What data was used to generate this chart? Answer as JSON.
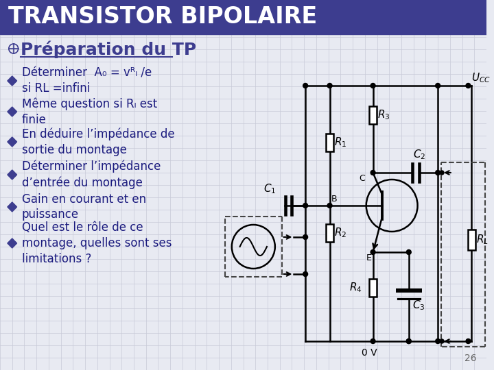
{
  "title": "TRANSISTOR BIPOLAIRE",
  "subtitle": "Préparation du TP",
  "title_bg_color": "#3d3d8f",
  "title_text_color": "#ffffff",
  "subtitle_text_color": "#3d3d8f",
  "bg_color": "#e8eaf2",
  "bullet_color": "#3d3d8f",
  "text_color": "#1a1a7e",
  "bullet_points": [
    "Déterminer  A₀ = vᴿₗ /e\nsi RL =infini",
    "Même question si Rₗ est\nfinie",
    "En déduire l’impédance de\nsortie du montage",
    "Déterminer l’impédance\nd’entrée du montage",
    "Gain en courant et en\npuissance",
    "Quel est le rôle de ce\nmontage, quelles sont ses\nlimitations ?"
  ],
  "page_number": "26",
  "grid_color": "#c8cad8"
}
